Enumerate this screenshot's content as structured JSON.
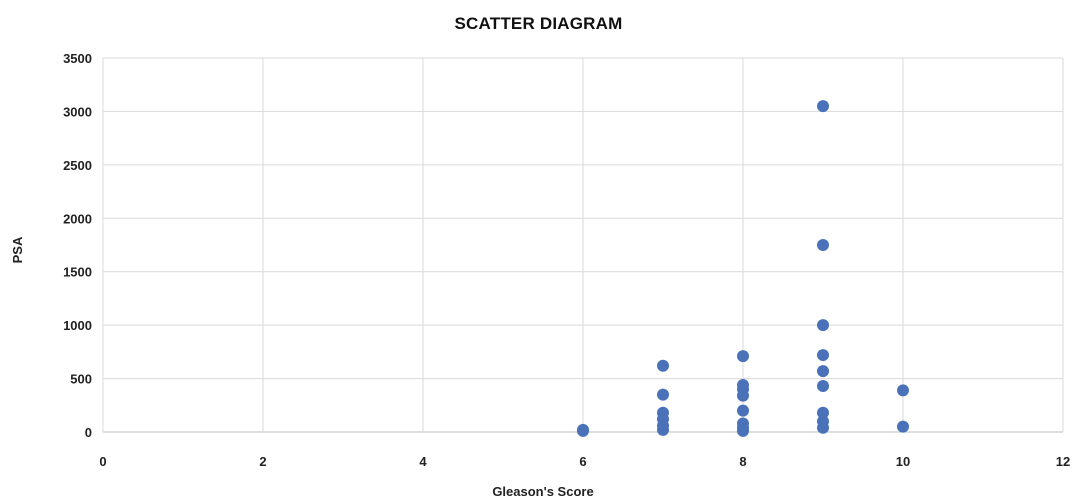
{
  "chart_data": {
    "type": "scatter",
    "title": "SCATTER DIAGRAM",
    "xlabel": "Gleason's Score",
    "ylabel": "PSA",
    "xlim": [
      0,
      12
    ],
    "ylim": [
      0,
      3500
    ],
    "x_ticks": [
      0,
      2,
      4,
      6,
      8,
      10,
      12
    ],
    "y_ticks": [
      0,
      500,
      1000,
      1500,
      2000,
      2500,
      3000,
      3500
    ],
    "grid": true,
    "legend": "none",
    "marker_color": "#4a72b8",
    "points": [
      {
        "x": 6,
        "y": 20
      },
      {
        "x": 6,
        "y": 10
      },
      {
        "x": 7,
        "y": 620
      },
      {
        "x": 7,
        "y": 350
      },
      {
        "x": 7,
        "y": 180
      },
      {
        "x": 7,
        "y": 120
      },
      {
        "x": 7,
        "y": 60
      },
      {
        "x": 7,
        "y": 20
      },
      {
        "x": 8,
        "y": 710
      },
      {
        "x": 8,
        "y": 440
      },
      {
        "x": 8,
        "y": 400
      },
      {
        "x": 8,
        "y": 340
      },
      {
        "x": 8,
        "y": 200
      },
      {
        "x": 8,
        "y": 80
      },
      {
        "x": 8,
        "y": 40
      },
      {
        "x": 8,
        "y": 10
      },
      {
        "x": 9,
        "y": 3050
      },
      {
        "x": 9,
        "y": 1750
      },
      {
        "x": 9,
        "y": 1000
      },
      {
        "x": 9,
        "y": 720
      },
      {
        "x": 9,
        "y": 570
      },
      {
        "x": 9,
        "y": 430
      },
      {
        "x": 9,
        "y": 180
      },
      {
        "x": 9,
        "y": 100
      },
      {
        "x": 9,
        "y": 40
      },
      {
        "x": 10,
        "y": 390
      },
      {
        "x": 10,
        "y": 50
      }
    ]
  }
}
